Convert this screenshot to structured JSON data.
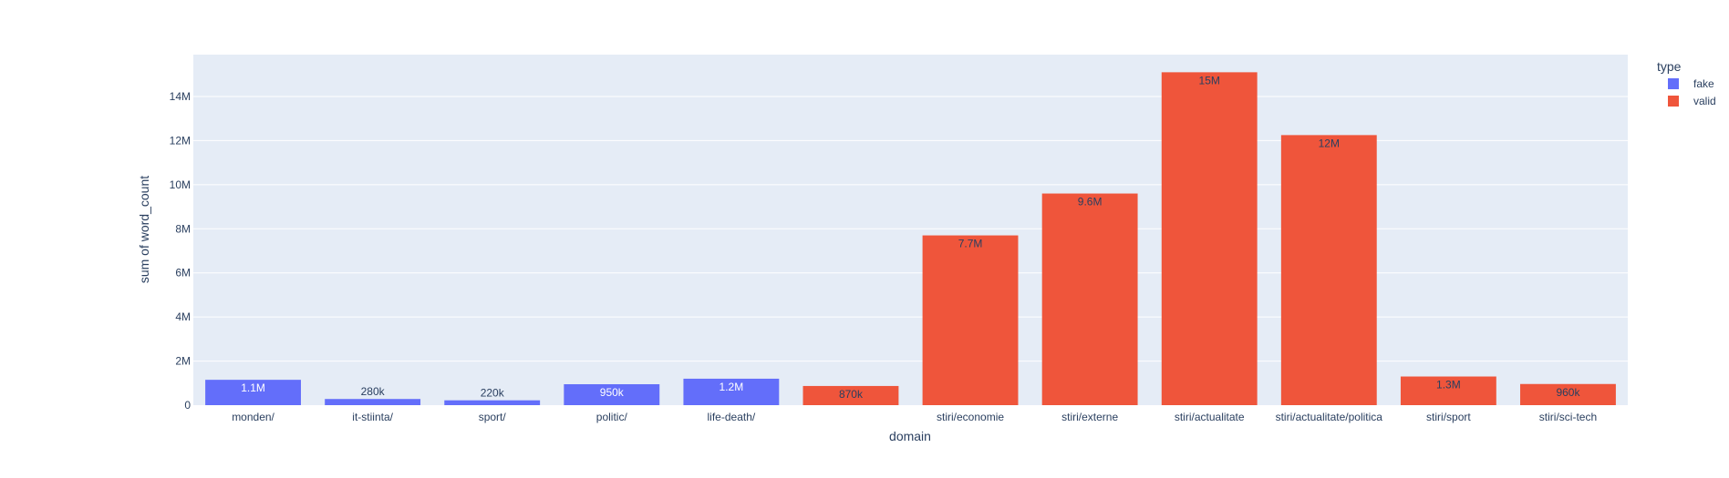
{
  "chart_data": {
    "type": "bar",
    "xlabel": "domain",
    "ylabel": "sum of word_count",
    "ylim": [
      0,
      15900000
    ],
    "yticks": [
      0,
      2000000,
      4000000,
      6000000,
      8000000,
      10000000,
      12000000,
      14000000
    ],
    "ytick_labels": [
      "0",
      "2M",
      "4M",
      "6M",
      "8M",
      "10M",
      "12M",
      "14M"
    ],
    "grid": true,
    "legend": {
      "title": "type",
      "placement": "top-right"
    },
    "categories": [
      "monden/",
      "it-stiinta/",
      "sport/",
      "politic/",
      "life-death/",
      "",
      "stiri/economie",
      "stiri/externe",
      "stiri/actualitate",
      "stiri/actualitate/politica",
      "stiri/sport",
      "stiri/sci-tech"
    ],
    "series": [
      {
        "name": "fake",
        "color": "#636efa",
        "values": [
          1150000,
          280000,
          220000,
          950000,
          1200000,
          null,
          null,
          null,
          null,
          null,
          null,
          null
        ],
        "labels": [
          "1.1M",
          "280k",
          "220k",
          "950k",
          "1.2M",
          null,
          null,
          null,
          null,
          null,
          null,
          null
        ]
      },
      {
        "name": "valid",
        "color": "#ef553b",
        "values": [
          null,
          null,
          null,
          null,
          null,
          870000,
          7700000,
          9600000,
          15100000,
          12250000,
          1300000,
          960000
        ],
        "labels": [
          null,
          null,
          null,
          null,
          null,
          "870k",
          "7.7M",
          "9.6M",
          "15M",
          "12M",
          "1.3M",
          "960k"
        ]
      }
    ]
  },
  "colors": {
    "plot_background": "#e5ecf6",
    "grid": "#ffffff",
    "text": "#2a3f5f"
  }
}
